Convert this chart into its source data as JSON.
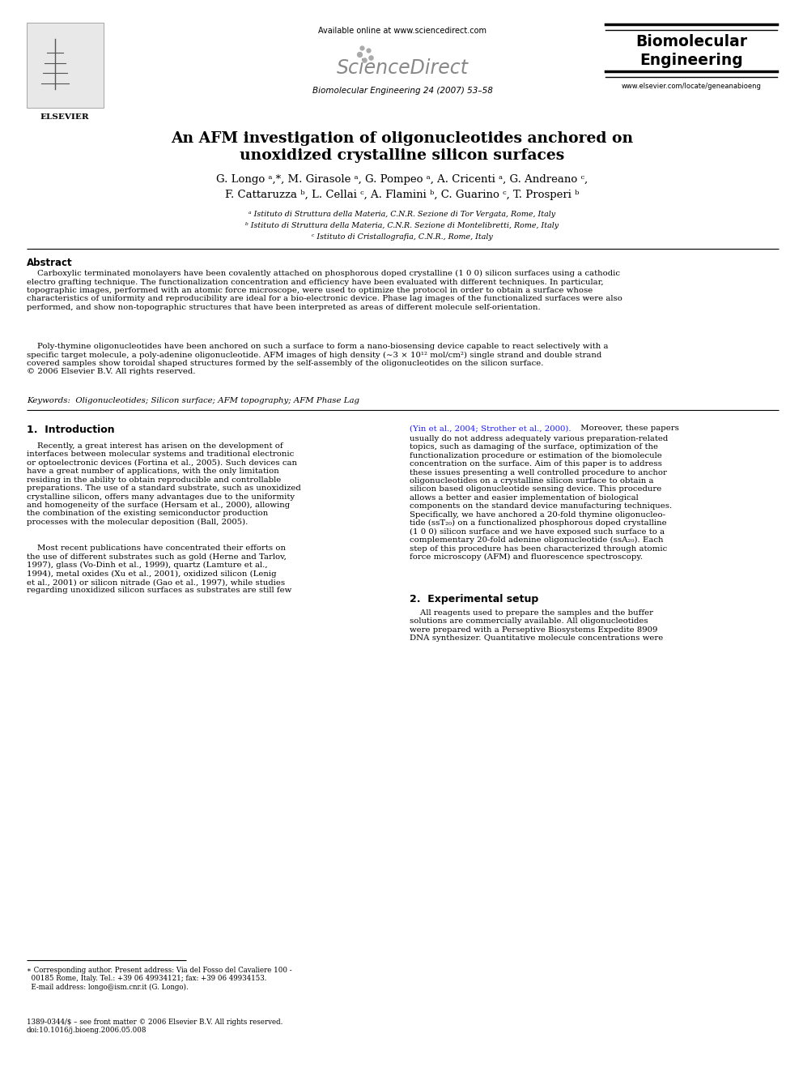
{
  "title_line1": "An AFM investigation of oligonucleotides anchored on",
  "title_line2": "unoxidized crystalline silicon surfaces",
  "authors_line1": "G. Longo ᵃ,*, M. Girasole ᵃ, G. Pompeo ᵃ, A. Cricenti ᵃ, G. Andreano ᶜ,",
  "authors_line2": "F. Cattaruzza ᵇ, L. Cellai ᶜ, A. Flamini ᵇ, C. Guarino ᶜ, T. Prosperi ᵇ",
  "affil_a": "ᵃ Istituto di Struttura della Materia, C.N.R. Sezione di Tor Vergata, Rome, Italy",
  "affil_b": "ᵇ Istituto di Struttura della Materia, C.N.R. Sezione di Montelibretti, Rome, Italy",
  "affil_c": "ᶜ Istituto di Cristallografia, C.N.R., Rome, Italy",
  "journal_line": "Biomolecular Engineering 24 (2007) 53–58",
  "available_online": "Available online at www.sciencedirect.com",
  "www_line": "www.elsevier.com/locate/geneanabioeng",
  "abstract_title": "Abstract",
  "abstract_p1": "    Carboxylic terminated monolayers have been covalently attached on phosphorous doped crystalline (1 0 0) silicon surfaces using a cathodic\nelectro grafting technique. The functionalization concentration and efficiency have been evaluated with different techniques. In particular,\ntopographic images, performed with an atomic force microscope, were used to optimize the protocol in order to obtain a surface whose\ncharacteristics of uniformity and reproducibility are ideal for a bio-electronic device. Phase lag images of the functionalized surfaces were also\nperformed, and show non-topographic structures that have been interpreted as areas of different molecule self-orientation.",
  "abstract_p2": "    Poly-thymine oligonucleotides have been anchored on such a surface to form a nano-biosensing device capable to react selectively with a\nspecific target molecule, a poly-adenine oligonucleotide. AFM images of high density (∼3 × 10¹² mol/cm²) single strand and double strand\ncovered samples show toroidal shaped structures formed by the self-assembly of the oligonucleotides on the silicon surface.\n© 2006 Elsevier B.V. All rights reserved.",
  "keywords_line": "Keywords:  Oligonucleotides; Silicon surface; AFM topography; AFM Phase Lag",
  "section1_title": "1.  Introduction",
  "section1_left_p1": "    Recently, a great interest has arisen on the development of\ninterfaces between molecular systems and traditional electronic\nor optoelectronic devices (Fortina et al., 2005). Such devices can\nhave a great number of applications, with the only limitation\nresiding in the ability to obtain reproducible and controllable\npreparations. The use of a standard substrate, such as unoxidized\ncrystalline silicon, offers many advantages due to the uniformity\nand homogeneity of the surface (Hersam et al., 2000), allowing\nthe combination of the existing semiconductor production\nprocesses with the molecular deposition (Ball, 2005).",
  "section1_left_p2": "    Most recent publications have concentrated their efforts on\nthe use of different substrates such as gold (Herne and Tarlov,\n1997), glass (Vo-Dinh et al., 1999), quartz (Lamture et al.,\n1994), metal oxides (Xu et al., 2001), oxidized silicon (Lenig\net al., 2001) or silicon nitrade (Gao et al., 1997), while studies\nregarding unoxidized silicon surfaces as substrates are still few",
  "section1_right_p1": "(Yin et al., 2004; Strother et al., 2000). Moreover, these papers\nusually do not address adequately various preparation-related\ntopics, such as damaging of the surface, optimization of the\nfunctionalization procedure or estimation of the biomolecule\nconcentration on the surface. Aim of this paper is to address\nthese issues presenting a well controlled procedure to anchor\noligonucleotides on a crystalline silicon surface to obtain a\nsilicon based oligonucleotide sensing device. This procedure\nallows a better and easier implementation of biological\ncomponents on the standard device manufacturing techniques.\nSpecifically, we have anchored a 20-fold thymine oligonucleo-\ntide (ssT₂₀) on a functionalized phosphorous doped crystalline\n(1 0 0) silicon surface and we have exposed such surface to a\ncomplementary 20-fold adenine oligonucleotide (ssA₂₀). Each\nstep of this procedure has been characterized through atomic\nforce microscopy (AFM) and fluorescence spectroscopy.",
  "section2_title": "2.  Experimental setup",
  "section2_right_p1": "    All reagents used to prepare the samples and the buffer\nsolutions are commercially available. All oligonucleotides\nwere prepared with a Perseptive Biosystems Expedite 8909\nDNA synthesizer. Quantitative molecule concentrations were",
  "footnote_star": "∗ Corresponding author. Present address: Via del Fosso del Cavaliere 100 -\n  00185 Rome, Italy. Tel.: +39 06 49934121; fax: +39 06 49934153.\n  E-mail address: longo@ism.cnr.it (G. Longo).",
  "footnote_issn": "1389-0344/$ – see front matter © 2006 Elsevier B.V. All rights reserved.\ndoi:10.1016/j.bioeng.2006.05.008",
  "bg_color": "#ffffff",
  "text_color": "#000000",
  "link_color": "#1a1aff",
  "title_fontsize": 13.5,
  "body_fontsize": 7.3,
  "small_fontsize": 6.2,
  "author_fontsize": 9.5,
  "section_fontsize": 9.0
}
